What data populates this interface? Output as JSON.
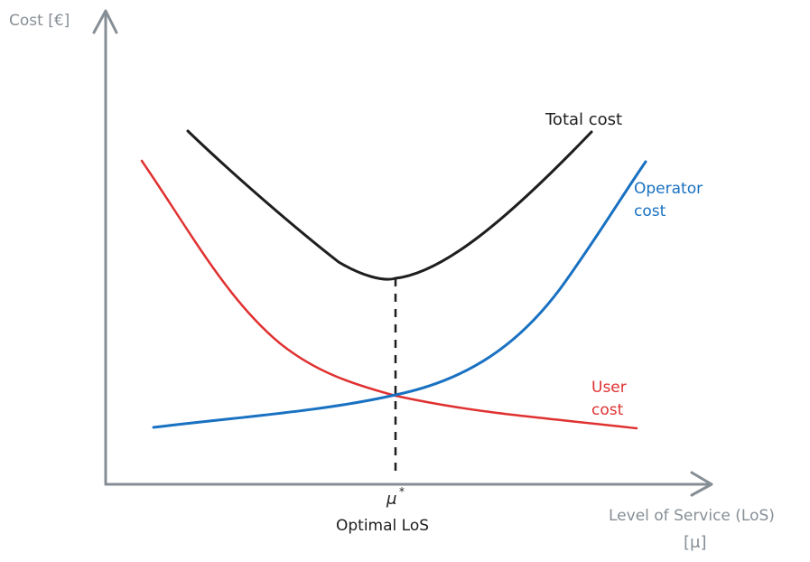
{
  "y_axis_label": "Cost [€]",
  "x_axis_label": "Level of Service (LoS)",
  "x_axis_unit": "[μ]",
  "optimum_symbol": "μ",
  "optimum_superscript": "*",
  "optimum_caption": "Optimal LoS",
  "curves": {
    "total": {
      "line1": "Total cost",
      "color": "#1e1e1e"
    },
    "operator": {
      "line1": "Operator",
      "line2": "cost",
      "color": "#1971c2"
    },
    "user": {
      "line1": "User",
      "line2": "cost",
      "color": "#e03131"
    }
  },
  "axis_color": "#868e96"
}
